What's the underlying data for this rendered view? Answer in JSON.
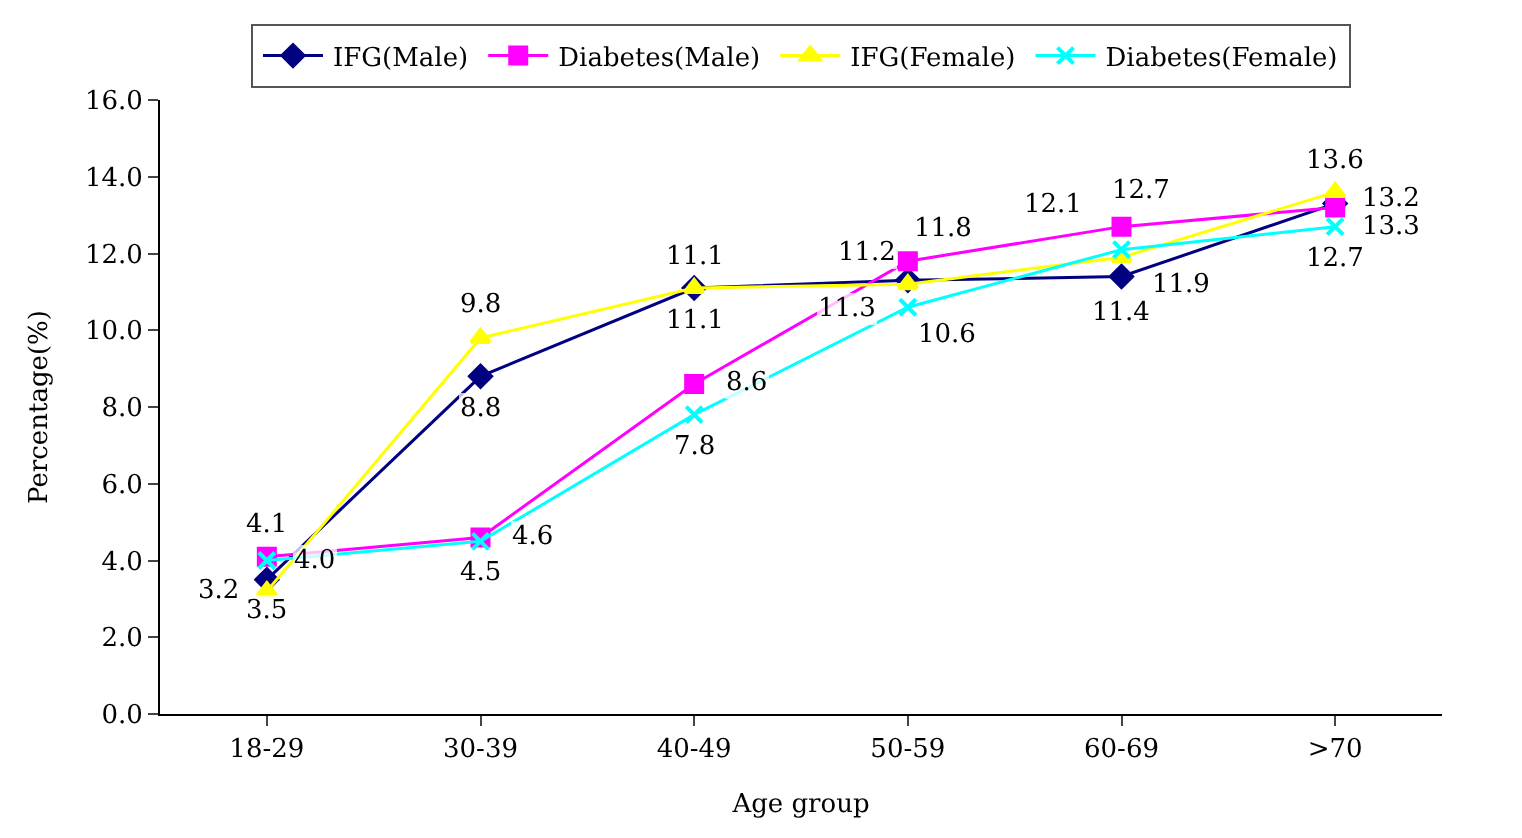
{
  "chart_data": {
    "type": "line",
    "xlabel": "Age group",
    "ylabel": "Percentage(%)",
    "categories": [
      "18-29",
      "30-39",
      "40-49",
      "50-59",
      "60-69",
      ">70"
    ],
    "series": [
      {
        "name": "IFG(Male)",
        "color": "#000080",
        "marker": "diamond",
        "values": [
          3.5,
          8.8,
          11.1,
          11.3,
          11.4,
          13.3
        ],
        "value_labels": [
          "3.5",
          "8.8",
          "11.1",
          "11.3",
          "11.4",
          "13.3"
        ]
      },
      {
        "name": "Diabetes(Male)",
        "color": "#ff00ff",
        "marker": "square",
        "values": [
          4.1,
          4.6,
          8.6,
          11.8,
          12.7,
          13.2
        ],
        "value_labels": [
          "4.1",
          "4.6",
          "8.6",
          "11.8",
          "12.7",
          "13.2"
        ]
      },
      {
        "name": "IFG(Female)",
        "color": "#ffff00",
        "marker": "triangle",
        "values": [
          3.2,
          9.8,
          11.1,
          11.2,
          11.9,
          13.6
        ],
        "value_labels": [
          "3.2",
          "9.8",
          "11.1",
          "11.2",
          "11.9",
          "13.6"
        ]
      },
      {
        "name": "Diabetes(Female)",
        "color": "#00ffff",
        "marker": "cross",
        "values": [
          4.0,
          4.5,
          7.8,
          10.6,
          12.1,
          12.7
        ],
        "value_labels": [
          "4.0",
          "4.5",
          "7.8",
          "10.6",
          "12.1",
          "12.7"
        ]
      }
    ],
    "ylim": [
      0,
      16
    ],
    "yticks": [
      {
        "value": 0,
        "label": "0.0"
      },
      {
        "value": 2,
        "label": "2.0"
      },
      {
        "value": 4,
        "label": "4.0"
      },
      {
        "value": 6,
        "label": "6.0"
      },
      {
        "value": 8,
        "label": "8.0"
      },
      {
        "value": 10,
        "label": "10.0"
      },
      {
        "value": 12,
        "label": "12.0"
      },
      {
        "value": 14,
        "label": "14.0"
      },
      {
        "value": 16,
        "label": "16.0"
      }
    ],
    "legend": "top"
  }
}
